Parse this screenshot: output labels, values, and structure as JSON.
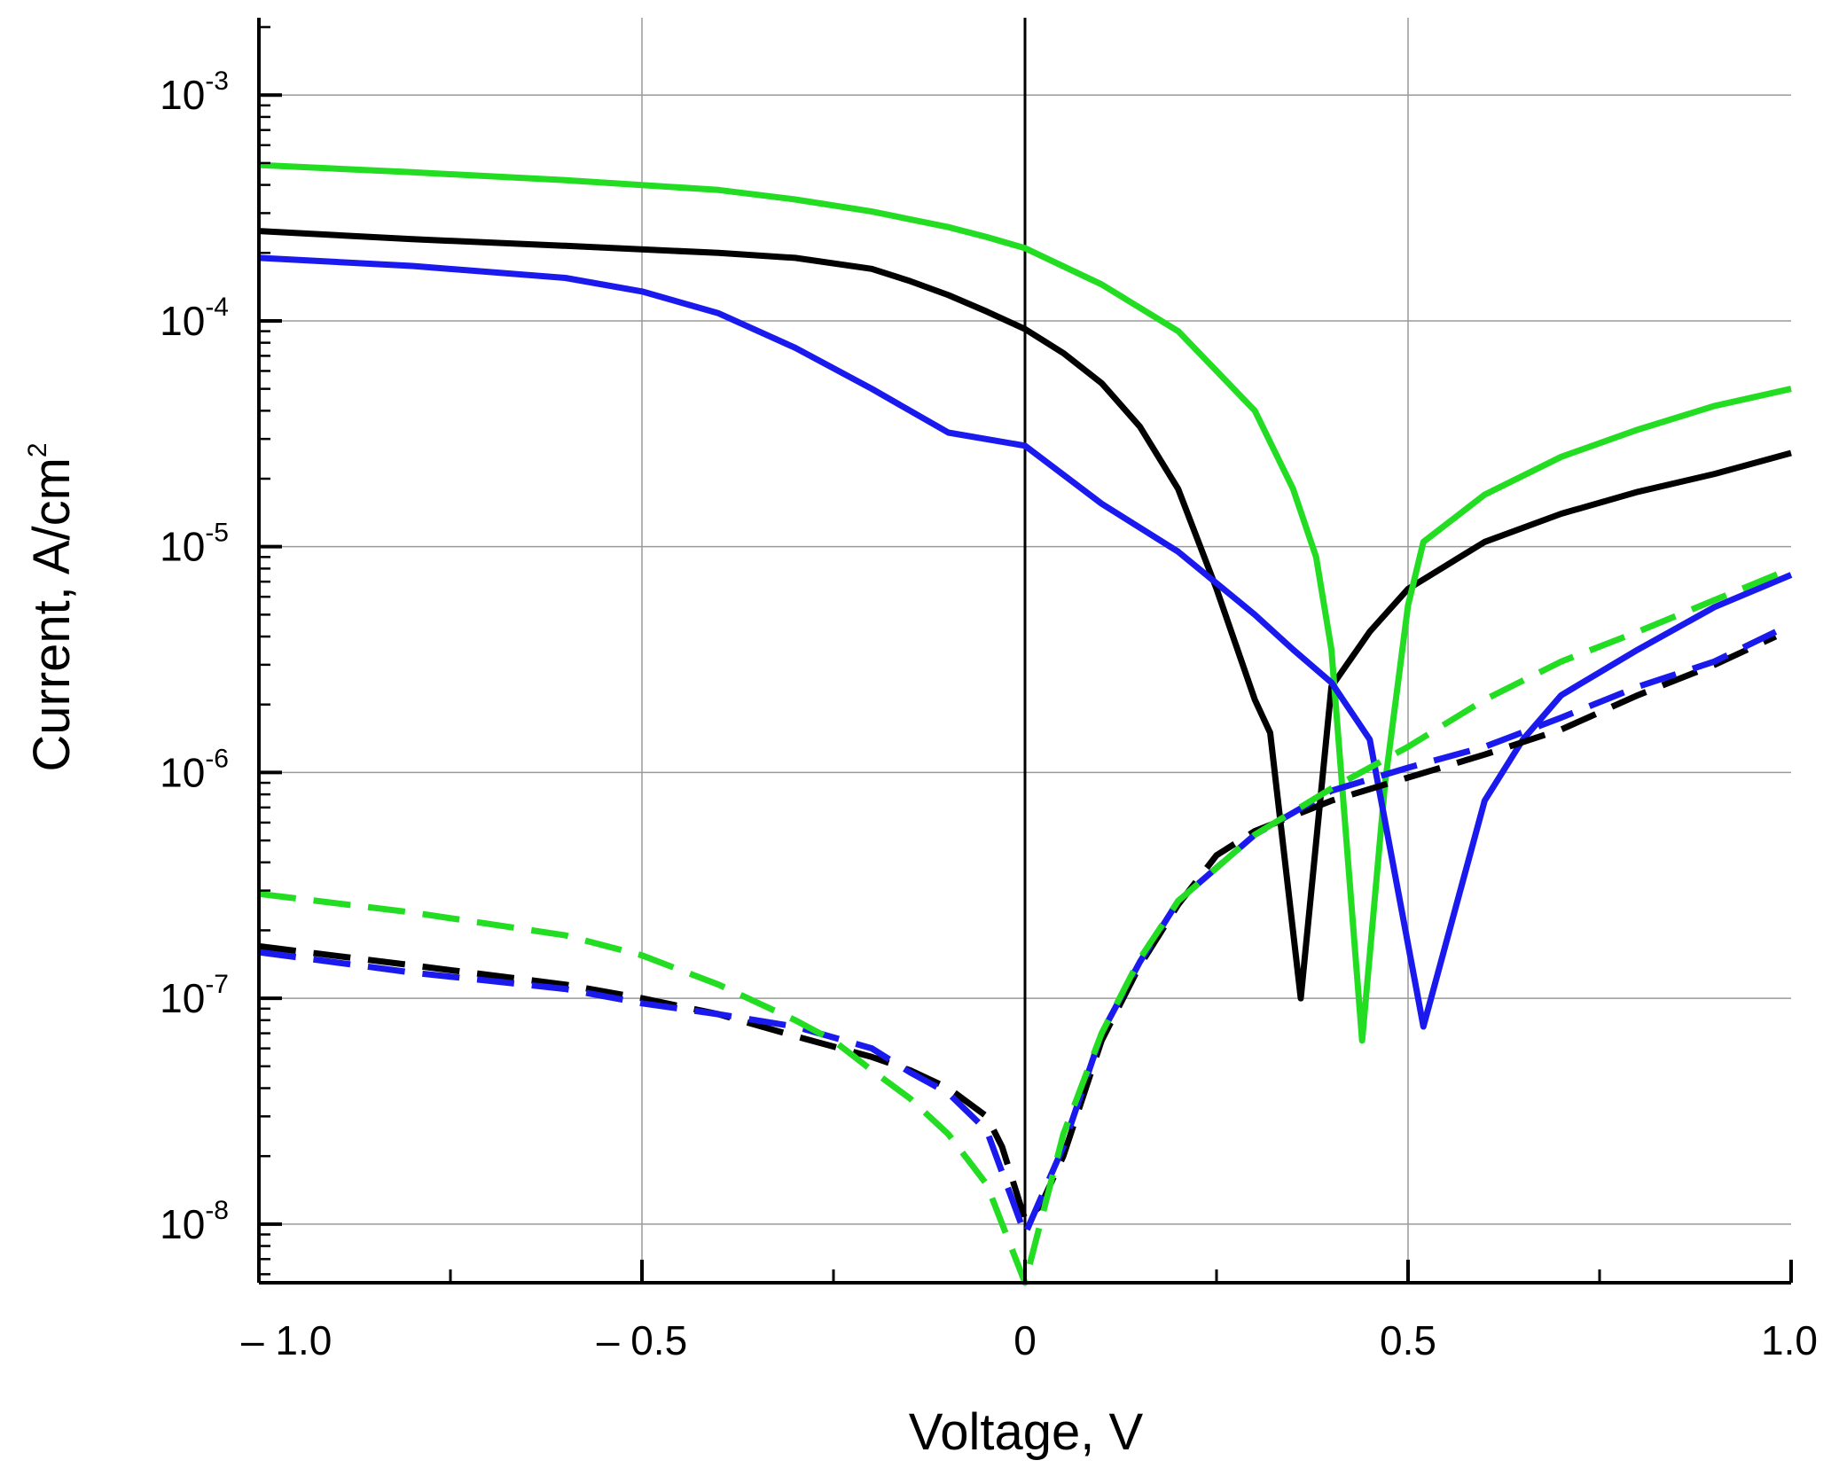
{
  "chart_data": {
    "type": "line",
    "title": "",
    "xlabel": "Voltage, V",
    "ylabel": {
      "base": "Current, A/cm",
      "superscript": "2"
    },
    "xlim": [
      -1.0,
      1.0
    ],
    "ylim": [
      5.5e-09,
      0.0022
    ],
    "yscale": "log",
    "grid": true,
    "x_ticks": [
      {
        "value": -1.0,
        "label": "– 1.0"
      },
      {
        "value": -0.5,
        "label": "– 0.5"
      },
      {
        "value": 0.0,
        "label": "0"
      },
      {
        "value": 0.5,
        "label": "0.5"
      },
      {
        "value": 1.0,
        "label": "1.0"
      }
    ],
    "y_ticks": [
      {
        "value": 1e-08,
        "base": "10",
        "exp": "-8"
      },
      {
        "value": 1e-07,
        "base": "10",
        "exp": "-7"
      },
      {
        "value": 1e-06,
        "base": "10",
        "exp": "-6"
      },
      {
        "value": 1e-05,
        "base": "10",
        "exp": "-5"
      },
      {
        "value": 0.0001,
        "base": "10",
        "exp": "-4"
      },
      {
        "value": 0.001,
        "base": "10",
        "exp": "-3"
      }
    ],
    "series": [
      {
        "name": "black-light",
        "color": "#000000",
        "style": "solid",
        "x": [
          -1.0,
          -0.8,
          -0.6,
          -0.4,
          -0.3,
          -0.2,
          -0.15,
          -0.1,
          -0.05,
          0.0,
          0.05,
          0.1,
          0.15,
          0.2,
          0.25,
          0.3,
          0.32,
          0.36,
          0.4,
          0.45,
          0.5,
          0.6,
          0.7,
          0.8,
          0.9,
          1.0
        ],
        "y": [
          0.00025,
          0.00023,
          0.000215,
          0.0002,
          0.00019,
          0.00017,
          0.00015,
          0.00013,
          0.00011,
          9.2e-05,
          7.2e-05,
          5.3e-05,
          3.4e-05,
          1.8e-05,
          6.5e-06,
          2.1e-06,
          1.5e-06,
          1e-07,
          2.4e-06,
          4.2e-06,
          6.5e-06,
          1.05e-05,
          1.4e-05,
          1.75e-05,
          2.1e-05,
          2.6e-05
        ]
      },
      {
        "name": "green-light",
        "color": "#22dd22",
        "style": "solid",
        "x": [
          -1.0,
          -0.8,
          -0.6,
          -0.4,
          -0.3,
          -0.2,
          -0.1,
          -0.05,
          0.0,
          0.1,
          0.2,
          0.3,
          0.35,
          0.38,
          0.4,
          0.44,
          0.47,
          0.5,
          0.52,
          0.6,
          0.7,
          0.8,
          0.9,
          1.0
        ],
        "y": [
          0.00049,
          0.000455,
          0.00042,
          0.00038,
          0.000345,
          0.000305,
          0.00026,
          0.000235,
          0.00021,
          0.000145,
          9e-05,
          4e-05,
          1.8e-05,
          9e-06,
          3.5e-06,
          6.5e-08,
          9e-07,
          5.5e-06,
          1.05e-05,
          1.7e-05,
          2.5e-05,
          3.3e-05,
          4.2e-05,
          5e-05
        ]
      },
      {
        "name": "blue-light",
        "color": "#1a1aee",
        "style": "solid",
        "x": [
          -1.0,
          -0.8,
          -0.6,
          -0.5,
          -0.4,
          -0.3,
          -0.2,
          -0.1,
          0.0,
          0.1,
          0.2,
          0.3,
          0.35,
          0.4,
          0.45,
          0.52,
          0.6,
          0.65,
          0.7,
          0.8,
          0.9,
          1.0
        ],
        "y": [
          0.00019,
          0.000175,
          0.000155,
          0.000135,
          0.000108,
          7.6e-05,
          5e-05,
          3.2e-05,
          2.8e-05,
          1.55e-05,
          9.5e-06,
          5e-06,
          3.5e-06,
          2.5e-06,
          1.4e-06,
          7.5e-08,
          7.5e-07,
          1.4e-06,
          2.2e-06,
          3.5e-06,
          5.4e-06,
          7.5e-06
        ]
      },
      {
        "name": "black-dark",
        "color": "#000000",
        "style": "dashed",
        "x": [
          -1.0,
          -0.8,
          -0.6,
          -0.5,
          -0.4,
          -0.3,
          -0.2,
          -0.15,
          -0.1,
          -0.05,
          -0.03,
          0.0,
          0.02,
          0.05,
          0.1,
          0.15,
          0.2,
          0.25,
          0.3,
          0.4,
          0.5,
          0.6,
          0.7,
          0.8,
          0.9,
          0.98
        ],
        "y": [
          1.7e-07,
          1.4e-07,
          1.15e-07,
          1e-07,
          8.5e-08,
          6.8e-08,
          5.5e-08,
          4.8e-08,
          4e-08,
          3e-08,
          2.2e-08,
          1.05e-08,
          1.2e-08,
          2e-08,
          6.5e-08,
          1.4e-07,
          2.6e-07,
          4.3e-07,
          5.5e-07,
          7.5e-07,
          9.5e-07,
          1.2e-06,
          1.55e-06,
          2.2e-06,
          3e-06,
          4e-06
        ]
      },
      {
        "name": "blue-dark",
        "color": "#1a1aee",
        "style": "dashed",
        "x": [
          -1.0,
          -0.8,
          -0.6,
          -0.5,
          -0.4,
          -0.3,
          -0.2,
          -0.15,
          -0.1,
          -0.05,
          0.0,
          0.05,
          0.1,
          0.15,
          0.2,
          0.3,
          0.4,
          0.5,
          0.6,
          0.7,
          0.8,
          0.9,
          0.98
        ],
        "y": [
          1.6e-07,
          1.3e-07,
          1.1e-07,
          9.5e-08,
          8.5e-08,
          7.5e-08,
          6e-08,
          4.7e-08,
          3.8e-08,
          2.6e-08,
          9e-09,
          2.2e-08,
          7e-08,
          1.45e-07,
          2.7e-07,
          5.3e-07,
          8.3e-07,
          1.05e-06,
          1.3e-06,
          1.75e-06,
          2.4e-06,
          3.1e-06,
          4.2e-06
        ]
      },
      {
        "name": "green-dark",
        "color": "#22dd22",
        "style": "dashed",
        "x": [
          -1.0,
          -0.8,
          -0.6,
          -0.5,
          -0.4,
          -0.3,
          -0.25,
          -0.2,
          -0.15,
          -0.1,
          -0.05,
          0.0,
          0.05,
          0.1,
          0.15,
          0.2,
          0.3,
          0.4,
          0.5,
          0.6,
          0.7,
          0.8,
          0.9,
          1.0
        ],
        "y": [
          2.9e-07,
          2.4e-07,
          1.9e-07,
          1.55e-07,
          1.15e-07,
          8e-08,
          6.5e-08,
          4.8e-08,
          3.6e-08,
          2.5e-08,
          1.5e-08,
          5.5e-09,
          2.5e-08,
          7e-08,
          1.5e-07,
          2.7e-07,
          5.3e-07,
          8.5e-07,
          1.3e-06,
          2.1e-06,
          3.1e-06,
          4.2e-06,
          5.8e-06,
          8e-06
        ]
      }
    ]
  }
}
